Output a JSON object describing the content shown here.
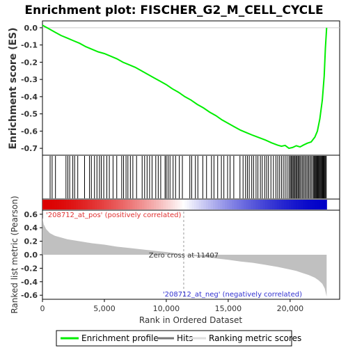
{
  "chart_data": {
    "type": "line",
    "title": "Enrichment plot: FISCHER_G2_M_CELL_CYCLE",
    "top_panel": {
      "ylabel": "Enrichment score (ES)",
      "ylim": [
        -0.74,
        0.04
      ],
      "yticks": [
        0.0,
        -0.1,
        -0.2,
        -0.3,
        -0.4,
        -0.5,
        -0.6,
        -0.7
      ],
      "ytick_labels": [
        "0.0",
        "-0.1",
        "-0.2",
        "-0.3",
        "-0.4",
        "-0.5",
        "-0.6",
        "-0.7"
      ],
      "series": [
        {
          "name": "Enrichment profile",
          "color": "#00ee00",
          "x": [
            0,
            500,
            1000,
            1500,
            2000,
            2500,
            3000,
            3500,
            4000,
            4500,
            5000,
            5500,
            6000,
            6500,
            7000,
            7500,
            8000,
            8500,
            9000,
            9500,
            10000,
            10500,
            11000,
            11500,
            12000,
            12500,
            13000,
            13500,
            14000,
            14500,
            15000,
            15500,
            16000,
            16500,
            17000,
            17500,
            18000,
            18500,
            19000,
            19300,
            19600,
            19900,
            20200,
            20500,
            20800,
            21100,
            21400,
            21700,
            22000,
            22200,
            22400,
            22600,
            22750,
            22850,
            22950
          ],
          "y": [
            0.015,
            -0.005,
            -0.025,
            -0.045,
            -0.06,
            -0.075,
            -0.09,
            -0.11,
            -0.125,
            -0.14,
            -0.15,
            -0.165,
            -0.18,
            -0.2,
            -0.215,
            -0.23,
            -0.25,
            -0.27,
            -0.29,
            -0.31,
            -0.33,
            -0.355,
            -0.375,
            -0.4,
            -0.42,
            -0.445,
            -0.465,
            -0.49,
            -0.51,
            -0.535,
            -0.555,
            -0.575,
            -0.595,
            -0.61,
            -0.625,
            -0.638,
            -0.652,
            -0.668,
            -0.682,
            -0.688,
            -0.683,
            -0.7,
            -0.695,
            -0.685,
            -0.692,
            -0.68,
            -0.67,
            -0.663,
            -0.635,
            -0.6,
            -0.53,
            -0.42,
            -0.28,
            -0.12,
            0.0
          ]
        }
      ]
    },
    "hits_panel": {
      "name": "Hits",
      "hit_ranks": [
        620,
        780,
        1050,
        1900,
        2050,
        2200,
        2450,
        2600,
        2850,
        3400,
        3800,
        3950,
        4200,
        4400,
        4600,
        4750,
        4950,
        5200,
        5400,
        5700,
        6000,
        6400,
        6550,
        6750,
        6900,
        7100,
        7300,
        7600,
        8050,
        8250,
        8450,
        8650,
        8850,
        9150,
        9350,
        9550,
        9900,
        10000,
        10150,
        10300,
        10550,
        10750,
        11050,
        11300,
        11900,
        12050,
        12350,
        12550,
        12950,
        13250,
        13650,
        13850,
        14150,
        14450,
        14650,
        14950,
        15150,
        15450,
        15950,
        16200,
        16400,
        16550,
        16700,
        16900,
        17050,
        17250,
        17400,
        17600,
        17750,
        17950,
        18100,
        18250,
        18450,
        18650,
        18850,
        19000,
        19150,
        19300,
        19450,
        19600,
        19750,
        19900,
        20000,
        20080,
        20160,
        20240,
        20320,
        20400,
        20480,
        20560,
        20640,
        20720,
        20800,
        20900,
        21000,
        21100,
        21200,
        21300,
        21400,
        21500,
        21600,
        21700,
        21800,
        21900,
        21960,
        22020,
        22080,
        22140,
        22200,
        22260,
        22320,
        22380,
        22440,
        22500,
        22560,
        22620,
        22680,
        22740,
        22800,
        22860,
        22920
      ]
    },
    "bottom_panel": {
      "name": "Ranking metric scores",
      "ylabel": "Ranked list metric (Pearson)",
      "xlabel": "Rank in Ordered Dataset",
      "ylim": [
        -0.66,
        0.66
      ],
      "yticks": [
        0.6,
        0.4,
        0.2,
        0.0,
        -0.2,
        -0.4,
        -0.6
      ],
      "ytick_labels": [
        "0.6",
        "0.4",
        "0.2",
        "0.0",
        "-0.2",
        "-0.4",
        "-0.6"
      ],
      "xlim": [
        0,
        24000
      ],
      "xticks": [
        0,
        5000,
        10000,
        15000,
        20000
      ],
      "xtick_labels": [
        "0",
        "5,000",
        "10,000",
        "15,000",
        "20,000"
      ],
      "metric_x": [
        0,
        100,
        300,
        600,
        1000,
        2000,
        3000,
        4000,
        5000,
        6000,
        7000,
        8000,
        9000,
        10000,
        11000,
        11407,
        12000,
        13000,
        14000,
        15000,
        16000,
        17000,
        18000,
        19000,
        20000,
        20500,
        21000,
        21500,
        22000,
        22300,
        22600,
        22800,
        22950
      ],
      "metric_y": [
        0.55,
        0.45,
        0.38,
        0.32,
        0.28,
        0.23,
        0.2,
        0.17,
        0.15,
        0.12,
        0.1,
        0.08,
        0.06,
        0.04,
        0.015,
        0.0,
        -0.015,
        -0.035,
        -0.055,
        -0.075,
        -0.1,
        -0.12,
        -0.15,
        -0.18,
        -0.22,
        -0.24,
        -0.27,
        -0.3,
        -0.34,
        -0.38,
        -0.43,
        -0.5,
        -0.62
      ],
      "zero_cross_rank": 11407,
      "zero_cross_label": "Zero cross at 11407",
      "pos_label": "'208712_at_pos' (positively correlated)",
      "neg_label": "'208712_at_neg' (negatively correlated)"
    },
    "legend": {
      "placement": "bottom",
      "entries": [
        "Enrichment profile",
        "Hits",
        "Ranking metric scores"
      ]
    },
    "colors": {
      "profile": "#00ee00",
      "hits": "#000000",
      "metric_fill": "#c0c0c0",
      "pos_red": "#e00000",
      "neg_blue": "#0000e0",
      "zero_line": "#999999",
      "frame": "#000000"
    },
    "grid": false,
    "total_rank": 22950
  }
}
